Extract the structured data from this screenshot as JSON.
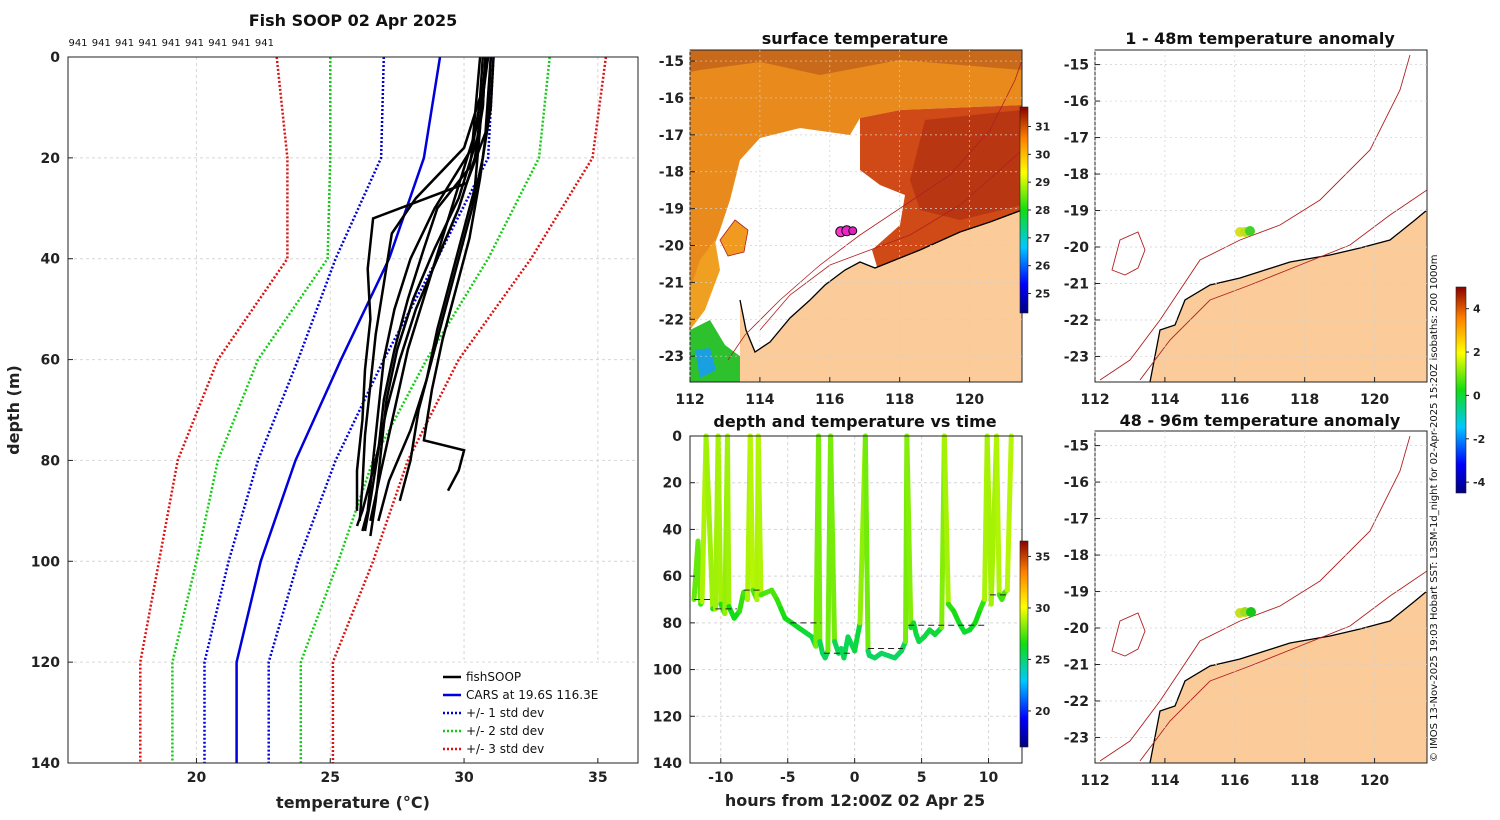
{
  "colors": {
    "fish": "#000000",
    "cars": "#0000dd",
    "std1": "#0000dd",
    "std2": "#11cc11",
    "std3": "#dd1111",
    "land": "#fbcc99",
    "coast": "#b02020",
    "warm_sst": "#d8601a"
  },
  "credit": "© IMOS 13-Nov-2025 19:03 Hobart SST: L3SM-1d_night for 02-Apr-2025 15:20Z isobaths: 200  1000m",
  "chart_data": [
    {
      "id": "profile",
      "type": "line",
      "title": "Fish SOOP 02 Apr 2025",
      "xlabel": "temperature (°C)",
      "ylabel": "depth (m)",
      "xlim": [
        15.2,
        36.5
      ],
      "ylim": [
        0,
        140
      ],
      "xticks": [
        "20",
        "25",
        "30",
        "35"
      ],
      "yticks": [
        "0",
        "20",
        "40",
        "60",
        "80",
        "100",
        "120",
        "140"
      ],
      "top_labels": [
        "941",
        "941",
        "941",
        "941",
        "941",
        "941",
        "941",
        "941",
        "941"
      ],
      "legend": [
        "fishSOOP",
        "CARS at 19.6S 116.3E",
        "+/- 1 std dev",
        "+/- 2 std dev",
        "+/- 3 std dev"
      ],
      "depths": [
        0,
        20,
        40,
        60,
        80,
        100,
        120,
        140
      ],
      "cars": [
        29.1,
        28.5,
        27.2,
        25.4,
        23.7,
        22.4,
        21.5,
        21.5
      ],
      "std1_lo": [
        27.0,
        26.9,
        25.2,
        23.8,
        22.3,
        21.2,
        20.3,
        20.3
      ],
      "std1_hi": [
        31.1,
        30.9,
        29.0,
        27.0,
        25.2,
        23.8,
        22.7,
        22.7
      ],
      "std2_lo": [
        25.0,
        25.0,
        24.9,
        22.3,
        20.8,
        20.0,
        19.1,
        19.1
      ],
      "std2_hi": [
        33.2,
        32.8,
        30.9,
        28.6,
        26.6,
        25.3,
        23.9,
        23.9
      ],
      "std3_lo": [
        23.0,
        23.4,
        23.4,
        20.8,
        19.3,
        18.6,
        17.9,
        17.9
      ],
      "std3_hi": [
        35.3,
        34.8,
        32.5,
        29.8,
        27.9,
        26.6,
        25.1,
        25.1
      ],
      "fish_profiles": [
        {
          "d": [
            0,
            10,
            20,
            30,
            40,
            50,
            60,
            70,
            80,
            90,
            93
          ],
          "t": [
            30.8,
            30.7,
            30.4,
            29.8,
            29.0,
            28.2,
            27.6,
            27.1,
            26.7,
            26.2,
            26.0
          ]
        },
        {
          "d": [
            0,
            12,
            22,
            30,
            38,
            48,
            58,
            68,
            78,
            88,
            94
          ],
          "t": [
            30.9,
            30.5,
            30.2,
            29.0,
            28.5,
            27.9,
            27.4,
            27.0,
            26.8,
            26.5,
            26.3
          ]
        },
        {
          "d": [
            0,
            8,
            18,
            28,
            35,
            45,
            55,
            65,
            75,
            85,
            92
          ],
          "t": [
            30.7,
            30.6,
            30.0,
            28.2,
            27.3,
            27.0,
            26.7,
            26.5,
            26.3,
            26.2,
            26.1
          ]
        },
        {
          "d": [
            0,
            15,
            25,
            32,
            42,
            52,
            62,
            72,
            82,
            90
          ],
          "t": [
            31.0,
            30.8,
            30.1,
            26.6,
            26.4,
            26.5,
            26.3,
            26.2,
            26.0,
            26.0
          ]
        },
        {
          "d": [
            0,
            10,
            20,
            30,
            40,
            50,
            60,
            70,
            80,
            88
          ],
          "t": [
            31.1,
            31.0,
            30.7,
            30.3,
            29.8,
            29.3,
            28.8,
            28.3,
            28.0,
            27.6
          ]
        },
        {
          "d": [
            0,
            14,
            26,
            34,
            44,
            54,
            64,
            74,
            84,
            92
          ],
          "t": [
            30.8,
            30.6,
            30.4,
            30.0,
            29.5,
            29.0,
            28.6,
            28.0,
            27.2,
            26.8
          ]
        },
        {
          "d": [
            0,
            12,
            24,
            36,
            46,
            56,
            66,
            76,
            78,
            82,
            86
          ],
          "t": [
            31.0,
            30.9,
            30.6,
            30.2,
            29.7,
            29.2,
            28.8,
            28.5,
            30.0,
            29.8,
            29.4
          ]
        },
        {
          "d": [
            0,
            16,
            28,
            38,
            48,
            58,
            68,
            78,
            88,
            95
          ],
          "t": [
            30.9,
            30.5,
            29.8,
            28.9,
            28.1,
            27.5,
            27.1,
            26.9,
            26.7,
            26.5
          ]
        },
        {
          "d": [
            0,
            18,
            30,
            40,
            50,
            60,
            70,
            80,
            90,
            94
          ],
          "t": [
            30.6,
            30.3,
            28.9,
            28.0,
            27.4,
            27.0,
            26.8,
            26.6,
            26.4,
            26.2
          ]
        },
        {
          "d": [
            0,
            10,
            22,
            34,
            46,
            58,
            70,
            82,
            92
          ],
          "t": [
            30.8,
            30.7,
            30.0,
            29.3,
            28.6,
            27.9,
            27.4,
            26.9,
            26.5
          ]
        }
      ]
    },
    {
      "id": "sst",
      "type": "heatmap",
      "title": "surface temperature",
      "xticks": [
        "112",
        "114",
        "116",
        "118",
        "120"
      ],
      "yticks": [
        "-15",
        "-16",
        "-17",
        "-18",
        "-19",
        "-20",
        "-21",
        "-22",
        "-23"
      ],
      "xlim": [
        112,
        121.5
      ],
      "ylim": [
        -23.7,
        -14.7
      ],
      "colorbar_ticks": [
        "25",
        "26",
        "27",
        "28",
        "29",
        "30",
        "31"
      ],
      "colorbar_range": [
        24.3,
        31.7
      ],
      "fish_position": [
        116.4,
        -19.6
      ]
    },
    {
      "id": "depth_time",
      "type": "scatter",
      "title": "depth and temperature vs time",
      "xlabel": "hours from 12:00Z 02 Apr 25",
      "xticks": [
        "-10",
        "-5",
        "0",
        "5",
        "10"
      ],
      "yticks": [
        "0",
        "20",
        "40",
        "60",
        "80",
        "100",
        "120",
        "140"
      ],
      "xlim": [
        -12.3,
        12.5
      ],
      "ylim": [
        0,
        140
      ],
      "colorbar_ticks": [
        "20",
        "25",
        "30",
        "35"
      ],
      "colorbar_range": [
        16.5,
        36.5
      ],
      "track_hours": [
        -12.0,
        -11.7,
        -11.5,
        -11.4,
        -11.1,
        -10.6,
        -10.4,
        -10.2,
        -10.0,
        -9.7,
        -9.5,
        -9.4,
        -9.0,
        -8.6,
        -8.3,
        -8.0,
        -7.8,
        -7.6,
        -7.3,
        -7.2,
        -7.0,
        -6.6,
        -6.2,
        -5.8,
        -5.5,
        -5.2,
        -4.7,
        -4.2,
        -3.7,
        -3.2,
        -2.9,
        -2.7,
        -2.6,
        -2.4,
        -2.2,
        -2.0,
        -1.8,
        -1.5,
        -1.2,
        -1.0,
        -0.8,
        -0.5,
        0.0,
        0.4,
        0.8,
        1.0,
        1.1,
        1.5,
        2.0,
        2.5,
        3.0,
        3.5,
        3.8,
        3.9,
        4.2,
        4.4,
        4.6,
        4.8,
        5.2,
        5.6,
        6.0,
        6.5,
        6.7,
        7.0,
        7.4,
        7.8,
        8.2,
        8.6,
        9.0,
        9.4,
        9.7,
        9.9,
        10.2,
        10.6,
        10.8,
        11.0,
        11.2,
        11.4,
        11.7
      ],
      "track_depth": [
        70,
        45,
        72,
        71,
        0,
        74,
        74,
        0,
        72,
        76,
        0,
        73,
        78,
        75,
        67,
        70,
        0,
        66,
        70,
        0,
        68,
        67,
        66,
        70,
        74,
        78,
        80,
        82,
        84,
        86,
        90,
        0,
        88,
        93,
        95,
        92,
        0,
        88,
        93,
        91,
        95,
        86,
        92,
        80,
        0,
        92,
        94,
        95,
        93,
        94,
        95,
        92,
        88,
        0,
        82,
        80,
        85,
        88,
        86,
        83,
        85,
        82,
        0,
        72,
        75,
        80,
        84,
        83,
        80,
        74,
        70,
        0,
        72,
        0,
        68,
        70,
        67,
        66,
        0
      ],
      "track_temp": [
        27.0,
        28.5,
        27.0,
        27.2,
        30.5,
        26.8,
        26.8,
        30.5,
        27.0,
        26.5,
        30.5,
        26.8,
        26.2,
        26.6,
        27.4,
        27.2,
        30.5,
        27.5,
        27.2,
        30.5,
        27.3,
        27.4,
        27.5,
        27.2,
        26.8,
        26.5,
        26.3,
        26.1,
        26.0,
        25.8,
        25.6,
        30.5,
        25.6,
        25.4,
        25.3,
        25.4,
        30.5,
        25.6,
        25.4,
        25.5,
        25.3,
        25.7,
        25.4,
        26.3,
        30.5,
        25.4,
        25.3,
        25.3,
        25.4,
        25.3,
        25.3,
        25.4,
        25.6,
        30.5,
        26.0,
        26.2,
        25.8,
        25.6,
        25.7,
        25.9,
        25.8,
        26.0,
        30.5,
        27.0,
        26.8,
        26.3,
        25.9,
        26.0,
        26.2,
        26.8,
        27.1,
        30.5,
        27.0,
        30.5,
        27.3,
        27.1,
        27.4,
        27.5,
        30.5
      ],
      "bottom_hours": [
        [
          -12.0,
          -10.5
        ],
        [
          -10.4,
          -8.8
        ],
        [
          -8.3,
          -7.0
        ],
        [
          -4.8,
          -2.5
        ],
        [
          -2.3,
          -0.1
        ],
        [
          1.0,
          3.6
        ],
        [
          4.0,
          9.8
        ],
        [
          10.1,
          11.5
        ]
      ],
      "bottom_depth": [
        70,
        74,
        66,
        80,
        93,
        91,
        81,
        68
      ]
    },
    {
      "id": "anom_shallow",
      "type": "scatter",
      "title": "1 - 48m temperature anomaly",
      "xticks": [
        "112",
        "114",
        "116",
        "118",
        "120"
      ],
      "yticks": [
        "-15",
        "-16",
        "-17",
        "-18",
        "-19",
        "-20",
        "-21",
        "-22",
        "-23"
      ],
      "xlim": [
        112,
        121.5
      ],
      "ylim": [
        -23.7,
        -14.6
      ]
    },
    {
      "id": "anom_deep",
      "type": "scatter",
      "title": "48 - 96m temperature anomaly",
      "xticks": [
        "112",
        "114",
        "116",
        "118",
        "120"
      ],
      "yticks": [
        "-15",
        "-16",
        "-17",
        "-18",
        "-19",
        "-20",
        "-21",
        "-22",
        "-23"
      ],
      "xlim": [
        112,
        121.5
      ],
      "ylim": [
        -23.7,
        -14.6
      ],
      "colorbar_ticks": [
        "4",
        "2",
        "0",
        "-2",
        "-4"
      ],
      "colorbar_range": [
        -4.5,
        5
      ]
    }
  ]
}
